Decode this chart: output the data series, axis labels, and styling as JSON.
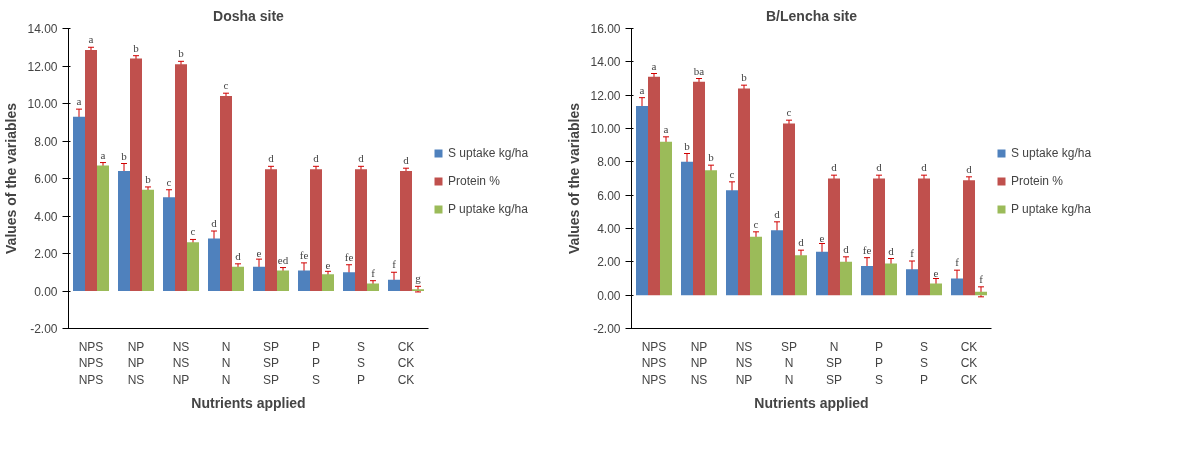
{
  "chart_data": [
    {
      "type": "bar",
      "title": "Dosha site",
      "xlabel": "Nutrients applied",
      "ylabel": "Values of the variables",
      "categories": [
        "NPS\nNPS\nNPS",
        "NP\nNP\nNS",
        "NS\nNS\nNP",
        "N\nN\nN",
        "SP\nSP\nSP",
        "P\nP\nS",
        "S\nS\nP",
        "CK\nCK\nCK"
      ],
      "ylim": [
        -2,
        14
      ],
      "yticks": [
        {
          "value": -2,
          "label": "-2.00"
        },
        {
          "value": 0,
          "label": "0.00"
        },
        {
          "value": 2,
          "label": "2.00"
        },
        {
          "value": 4,
          "label": "4.00"
        },
        {
          "value": 6,
          "label": "6.00"
        },
        {
          "value": 8,
          "label": "8.00"
        },
        {
          "value": 10,
          "label": "10.00"
        },
        {
          "value": 12,
          "label": "12.00"
        },
        {
          "value": 14,
          "label": "14.00"
        }
      ],
      "grid": false,
      "legend": "right",
      "series": [
        {
          "name": "S uptake kg/ha",
          "color": "#4f81bd",
          "values": [
            9.3,
            6.4,
            5.0,
            2.8,
            1.3,
            1.1,
            1.0,
            0.6
          ],
          "errors": [
            0.4,
            0.4,
            0.4,
            0.4,
            0.4,
            0.4,
            0.4,
            0.4
          ],
          "value_labels": [
            "a",
            "b",
            "c",
            "d",
            "e",
            "fe",
            "fe",
            "f"
          ]
        },
        {
          "name": "Protein %",
          "color": "#c0504d",
          "values": [
            12.85,
            12.4,
            12.1,
            10.4,
            6.5,
            6.5,
            6.5,
            6.4
          ],
          "errors": [
            0.15,
            0.15,
            0.15,
            0.15,
            0.15,
            0.15,
            0.15,
            0.15
          ],
          "value_labels": [
            "a",
            "b",
            "b",
            "c",
            "d",
            "d",
            "d",
            "d"
          ]
        },
        {
          "name": "P uptake kg/ha",
          "color": "#9bbb59",
          "values": [
            6.7,
            5.4,
            2.6,
            1.3,
            1.1,
            0.9,
            0.4,
            0.1
          ],
          "errors": [
            0.15,
            0.15,
            0.15,
            0.15,
            0.15,
            0.15,
            0.15,
            0.15
          ],
          "value_labels": [
            "a",
            "b",
            "c",
            "d",
            "ed",
            "e",
            "f",
            "g"
          ]
        }
      ]
    },
    {
      "type": "bar",
      "title": "B/Lencha site",
      "xlabel": "Nutrients applied",
      "ylabel": "Values of the variables",
      "categories": [
        "NPS\nNPS\nNPS",
        "NP\nNP\nNS",
        "NS\nNS\nNP",
        "SP\nN\nN",
        "N\nSP\nSP",
        "P\nP\nS",
        "S\nS\nP",
        "CK\nCK\nCK"
      ],
      "ylim": [
        -2,
        16
      ],
      "yticks": [
        {
          "value": -2,
          "label": "-2.00"
        },
        {
          "value": 0,
          "label": "0.00"
        },
        {
          "value": 2,
          "label": "2.00"
        },
        {
          "value": 4,
          "label": "4.00"
        },
        {
          "value": 6,
          "label": "6.00"
        },
        {
          "value": 8,
          "label": "8.00"
        },
        {
          "value": 10,
          "label": "10.00"
        },
        {
          "value": 12,
          "label": "12.00"
        },
        {
          "value": 14,
          "label": "14.00"
        },
        {
          "value": 16,
          "label": "16.00"
        }
      ],
      "grid": false,
      "legend": "right",
      "series": [
        {
          "name": "S uptake kg/ha",
          "color": "#4f81bd",
          "values": [
            11.35,
            8.0,
            6.3,
            3.9,
            2.6,
            1.75,
            1.55,
            1.0
          ],
          "errors": [
            0.5,
            0.5,
            0.5,
            0.5,
            0.5,
            0.5,
            0.5,
            0.5
          ],
          "value_labels": [
            "a",
            "b",
            "c",
            "d",
            "e",
            "fe",
            "f",
            "f"
          ]
        },
        {
          "name": "Protein %",
          "color": "#c0504d",
          "values": [
            13.1,
            12.8,
            12.4,
            10.3,
            7.0,
            7.0,
            7.0,
            6.9
          ],
          "errors": [
            0.2,
            0.2,
            0.2,
            0.2,
            0.2,
            0.2,
            0.2,
            0.2
          ],
          "value_labels": [
            "a",
            "ba",
            "b",
            "c",
            "d",
            "d",
            "d",
            "d"
          ]
        },
        {
          "name": "P uptake kg/ha",
          "color": "#9bbb59",
          "values": [
            9.2,
            7.5,
            3.5,
            2.4,
            2.0,
            1.9,
            0.7,
            0.2
          ],
          "errors": [
            0.3,
            0.3,
            0.3,
            0.3,
            0.3,
            0.3,
            0.3,
            0.3
          ],
          "value_labels": [
            "a",
            "b",
            "c",
            "d",
            "d",
            "d",
            "e",
            "f"
          ]
        }
      ]
    }
  ]
}
